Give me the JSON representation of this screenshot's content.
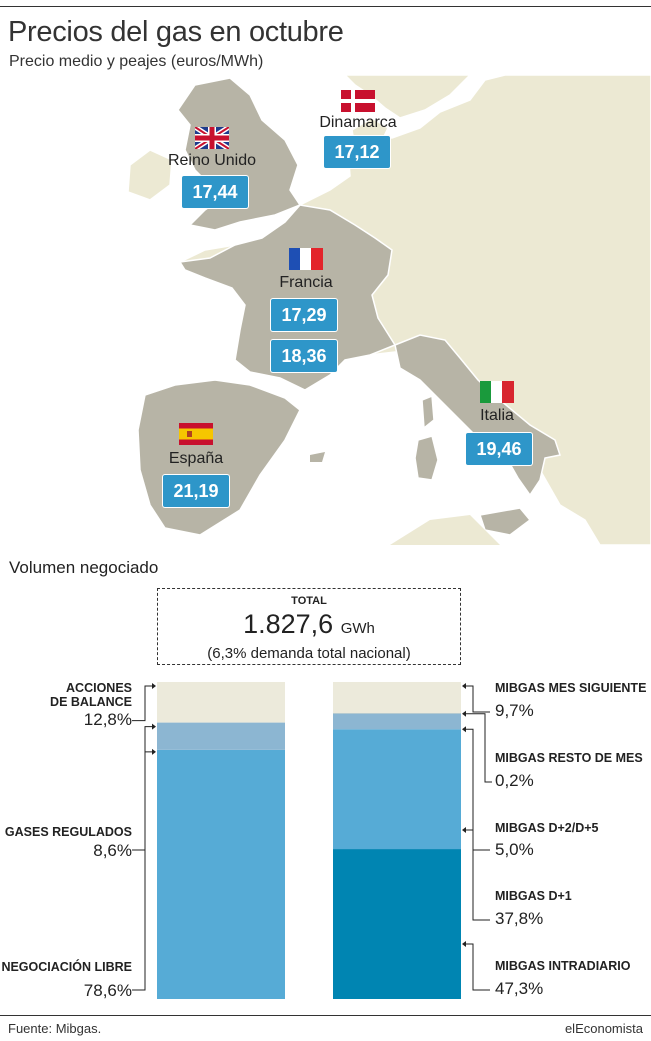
{
  "header": {
    "title": "Precios del gas en octubre",
    "subtitle": "Precio medio y peajes (euros/MWh)"
  },
  "map": {
    "countries": {
      "reino_unido": {
        "name": "Reino Unido",
        "price": "17,44"
      },
      "dinamarca": {
        "name": "Dinamarca",
        "price": "17,12"
      },
      "francia": {
        "name": "Francia",
        "price_1": "17,29",
        "price_2": "18,36"
      },
      "italia": {
        "name": "Italia",
        "price": "19,46"
      },
      "espana": {
        "name": "España",
        "price": "21,19"
      }
    },
    "colors": {
      "land": "#ece9d3",
      "land_highlight": "#b7b4a6",
      "water": "#ffffff",
      "borders": "#ffffff",
      "price_box": "#2e96c9"
    }
  },
  "volume": {
    "section_title": "Volumen negociado",
    "total_label": "TOTAL",
    "total_value": "1.827,6",
    "total_unit": "GWh",
    "total_note": "(6,3% demanda total nacional)"
  },
  "chart_data": [
    {
      "type": "bar",
      "stacked": true,
      "series": [
        {
          "name": "NEGOCIACIÓN LIBRE",
          "value": 78.6,
          "label": "78,6%",
          "color": "#56abd6"
        },
        {
          "name": "GASES REGULADOS",
          "value": 8.6,
          "label": "8,6%",
          "color": "#8cb6d2"
        },
        {
          "name": "ACCIONES DE BALANCE",
          "value": 12.8,
          "label": "12,8%",
          "color": "#eceadb"
        }
      ]
    },
    {
      "type": "bar",
      "stacked": true,
      "series": [
        {
          "name": "MIBGAS INTRADIARIO",
          "value": 47.3,
          "label": "47,3%",
          "color": "#0085b2"
        },
        {
          "name": "MIBGAS D+1",
          "value": 37.8,
          "label": "37,8%",
          "color": "#56abd6"
        },
        {
          "name": "MIBGAS D+2/D+5",
          "value": 5.0,
          "label": "5,0%",
          "color": "#8cb6d2"
        },
        {
          "name": "MIBGAS RESTO DE MES",
          "value": 0.2,
          "label": "0,2%",
          "color": "#dcd9c4"
        },
        {
          "name": "MIBGAS MES SIGUIENTE",
          "value": 9.7,
          "label": "9,7%",
          "color": "#eceadb"
        }
      ]
    }
  ],
  "left_labels": {
    "balance_1": "ACCIONES",
    "balance_2": "DE BALANCE",
    "balance_pct": "12,8%",
    "regulados": "GASES REGULADOS",
    "regulados_pct": "8,6%",
    "libre": "NEGOCIACIÓN LIBRE",
    "libre_pct": "78,6%"
  },
  "right_labels": {
    "mes_siguiente": "MIBGAS MES SIGUIENTE",
    "mes_siguiente_pct": "9,7%",
    "resto_mes": "MIBGAS RESTO DE MES",
    "resto_mes_pct": "0,2%",
    "d2d5": "MIBGAS D+2/D+5",
    "d2d5_pct": "5,0%",
    "d1": "MIBGAS D+1",
    "d1_pct": "37,8%",
    "intradiario": "MIBGAS INTRADIARIO",
    "intradiario_pct": "47,3%"
  },
  "footer": {
    "source": "Fuente: Mibgas.",
    "brand": "elEconomista"
  }
}
